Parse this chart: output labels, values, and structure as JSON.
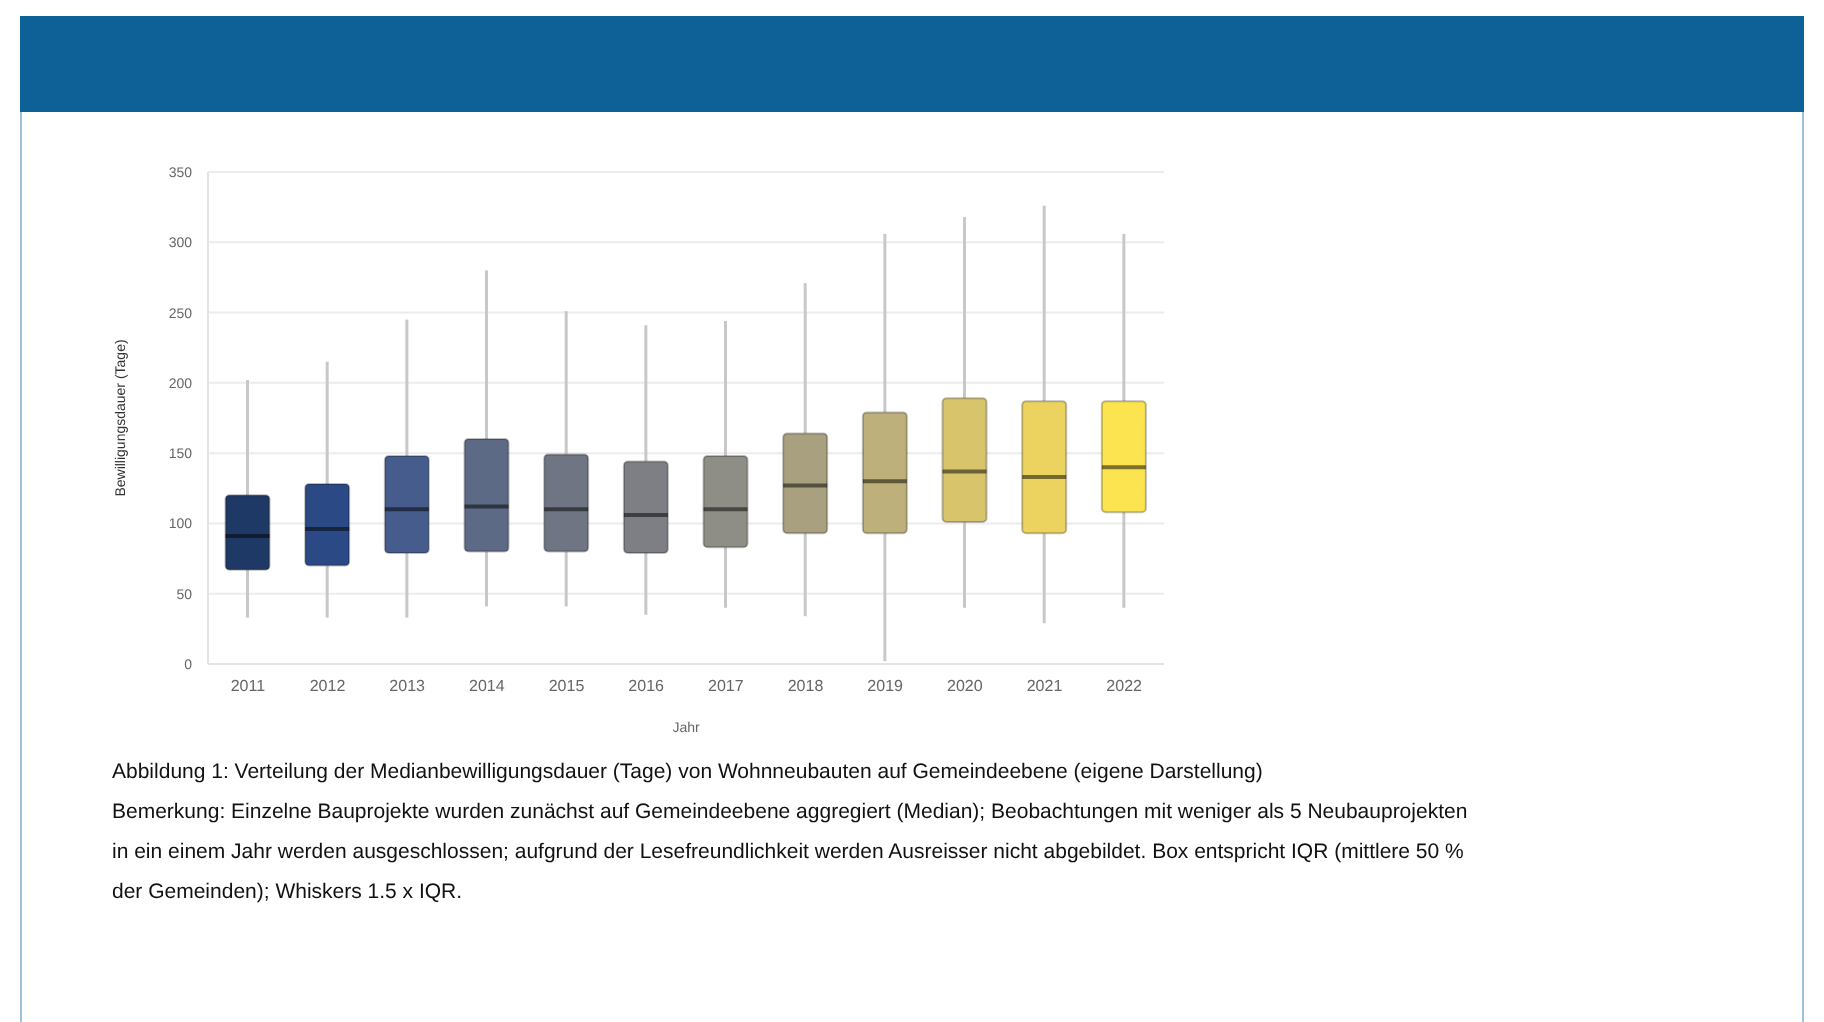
{
  "chart_data": {
    "type": "box",
    "xlabel": "Jahr",
    "ylabel": "Bewilligungsdauer (Tage)",
    "categories": [
      "2011",
      "2012",
      "2013",
      "2014",
      "2015",
      "2016",
      "2017",
      "2018",
      "2019",
      "2020",
      "2021",
      "2022"
    ],
    "boxes": [
      {
        "low": 33,
        "q1": 67,
        "median": 91,
        "q3": 120,
        "high": 202
      },
      {
        "low": 33,
        "q1": 70,
        "median": 96,
        "q3": 128,
        "high": 215
      },
      {
        "low": 33,
        "q1": 79,
        "median": 110,
        "q3": 148,
        "high": 245
      },
      {
        "low": 41,
        "q1": 80,
        "median": 112,
        "q3": 160,
        "high": 280
      },
      {
        "low": 41,
        "q1": 80,
        "median": 110,
        "q3": 149,
        "high": 251
      },
      {
        "low": 35,
        "q1": 79,
        "median": 106,
        "q3": 144,
        "high": 241
      },
      {
        "low": 40,
        "q1": 83,
        "median": 110,
        "q3": 148,
        "high": 244
      },
      {
        "low": 34,
        "q1": 93,
        "median": 127,
        "q3": 164,
        "high": 271
      },
      {
        "low": 2,
        "q1": 93,
        "median": 130,
        "q3": 179,
        "high": 306
      },
      {
        "low": 40,
        "q1": 101,
        "median": 137,
        "q3": 189,
        "high": 318
      },
      {
        "low": 29,
        "q1": 93,
        "median": 133,
        "q3": 187,
        "high": 326
      },
      {
        "low": 40,
        "q1": 108,
        "median": 140,
        "q3": 187,
        "high": 306
      }
    ],
    "colors": [
      "#1f3966",
      "#2b4a85",
      "#465c8c",
      "#5d6a85",
      "#6f7583",
      "#7d7f84",
      "#8f8e86",
      "#a8a07e",
      "#bdb07a",
      "#d8c46b",
      "#ecd35f",
      "#fbe44f"
    ],
    "ylim": [
      0,
      350
    ],
    "yticks": [
      0,
      50,
      100,
      150,
      200,
      250,
      300,
      350
    ],
    "grid": "y",
    "annotations": [
      "Abbildung 1: Verteilung der Medianbewilligungsdauer (Tage) von Wohnneubauten auf Gemeindeebene (eigene Darstellung)",
      "Bemerkung: Einzelne Bauprojekte wurden zunächst auf Gemeindeebene aggregiert (Median); Beobachtungen mit weniger als 5 Neubauprojekten in ein einem Jahr werden ausgeschlossen; aufgrund der Lesefreundlichkeit werden Ausreisser nicht abgebildet. Box entspricht IQR (mittlere 50 % der Gemeinden); Whiskers 1.5 x IQR."
    ]
  }
}
